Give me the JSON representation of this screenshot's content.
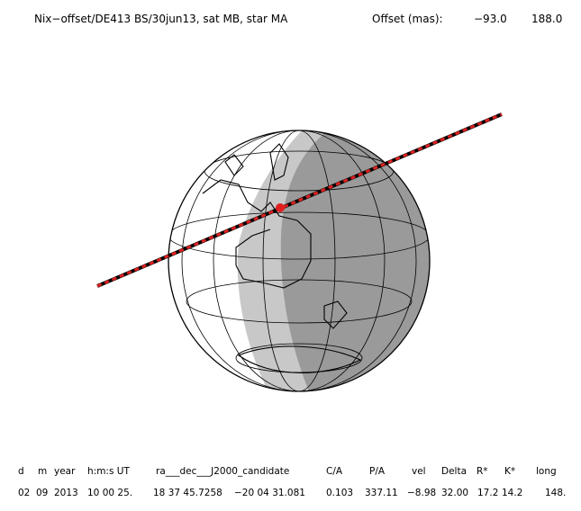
{
  "header": {
    "title": "Nix−offset/DE413 BS/30jun13, sat MB, star MA",
    "offset_label": "Offset (mas):",
    "offset_x": "−93.0",
    "offset_y": "188.0"
  },
  "table": {
    "columns": [
      "d",
      "m",
      "year",
      "h:m:s UT",
      "ra___dec___J2000_candidate",
      "C/A",
      "P/A",
      "vel",
      "Delta",
      "R*",
      "K*",
      "long"
    ],
    "row": [
      "02",
      "09",
      "2013",
      "10 00 25.",
      "18 37 45.7258",
      "−20 04  31.081",
      "0.103",
      "337.11",
      "−8.98",
      "32.00",
      "17.2",
      "14.2",
      "148."
    ]
  }
}
